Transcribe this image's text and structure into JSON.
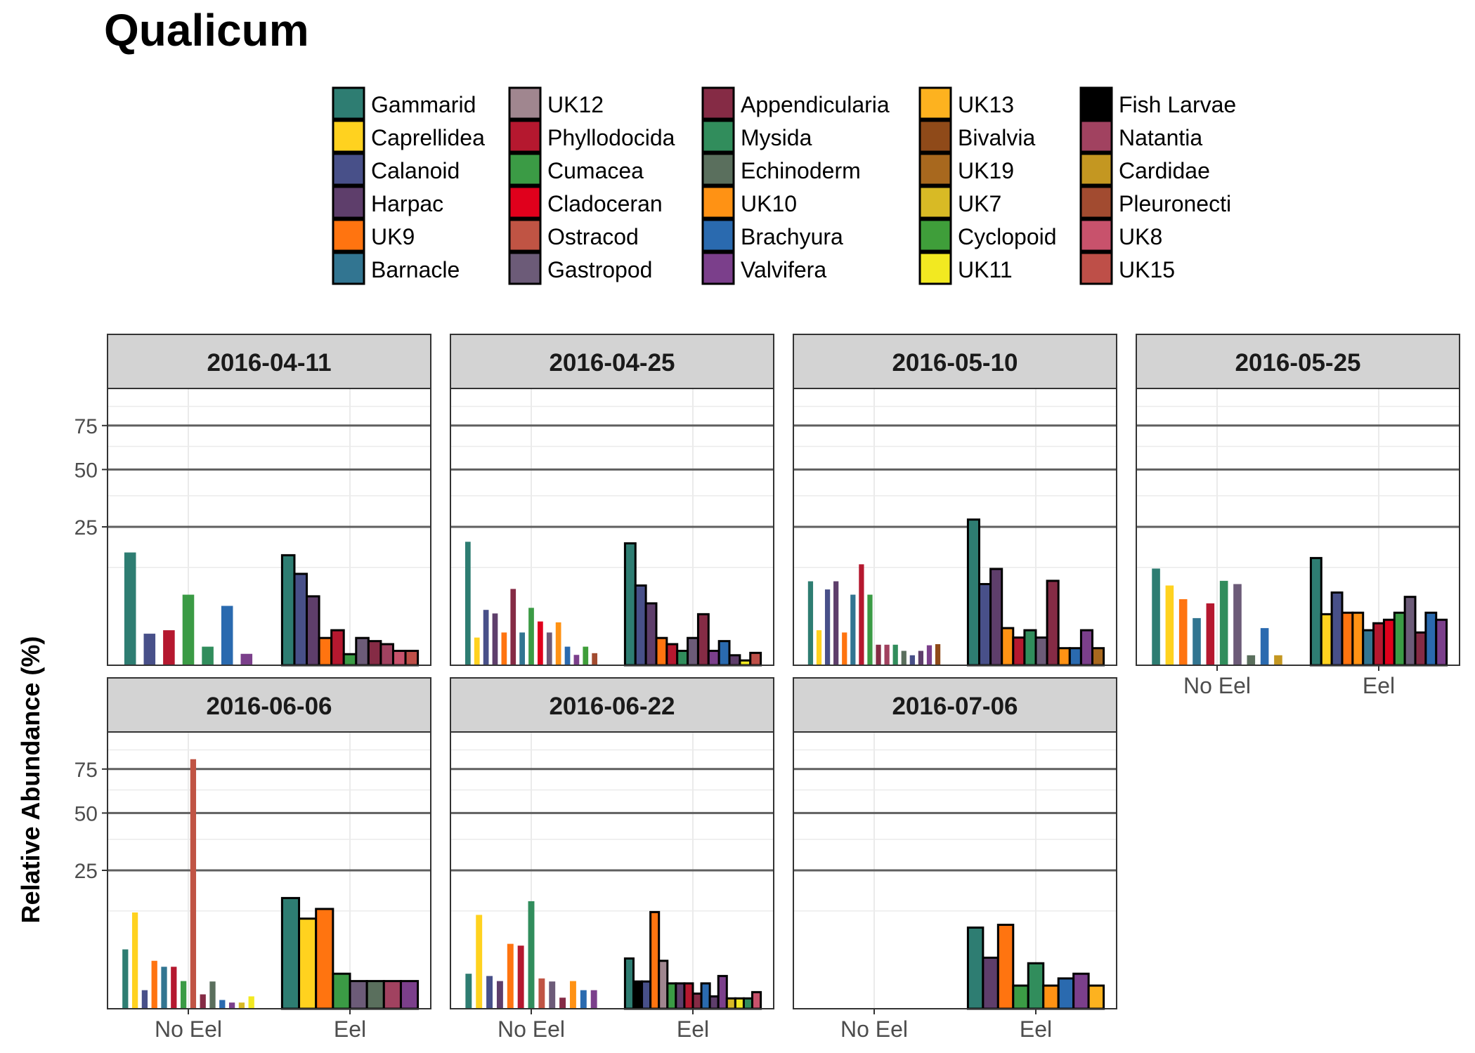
{
  "title": "Qualicum",
  "ylabel": "Relative Abundance (%)",
  "legend": [
    {
      "name": "Gammarid",
      "color": "#2E7D72"
    },
    {
      "name": "Caprellidea",
      "color": "#FFD21F"
    },
    {
      "name": "Calanoid",
      "color": "#485089"
    },
    {
      "name": "Harpac",
      "color": "#5E3E6B"
    },
    {
      "name": "UK9",
      "color": "#FF7410"
    },
    {
      "name": "Barnacle",
      "color": "#327591"
    },
    {
      "name": "UK12",
      "color": "#A0868F"
    },
    {
      "name": "Phyllodocida",
      "color": "#B5182F"
    },
    {
      "name": "Cumacea",
      "color": "#3B9B45"
    },
    {
      "name": "Cladoceran",
      "color": "#E0001C"
    },
    {
      "name": "Ostracod",
      "color": "#C05444"
    },
    {
      "name": "Gastropod",
      "color": "#6C5B78"
    },
    {
      "name": "Appendicularia",
      "color": "#852B45"
    },
    {
      "name": "Mysida",
      "color": "#318D5C"
    },
    {
      "name": "Echinoderm",
      "color": "#5A6F5D"
    },
    {
      "name": "UK10",
      "color": "#FF9214"
    },
    {
      "name": "Brachyura",
      "color": "#2A6AAF"
    },
    {
      "name": "Valvifera",
      "color": "#7B3F8B"
    },
    {
      "name": "UK13",
      "color": "#FDB21F"
    },
    {
      "name": "Bivalvia",
      "color": "#8F4A19"
    },
    {
      "name": "UK19",
      "color": "#A8681E"
    },
    {
      "name": "UK7",
      "color": "#D8BA25"
    },
    {
      "name": "Cyclopoid",
      "color": "#3F9E3A"
    },
    {
      "name": "UK11",
      "color": "#F2E921"
    },
    {
      "name": "Fish Larvae",
      "color": "#000000"
    },
    {
      "name": "Natantia",
      "color": "#A14260"
    },
    {
      "name": "Cardidae",
      "color": "#C49721"
    },
    {
      "name": "Pleuronecti",
      "color": "#A24B30"
    },
    {
      "name": "UK8",
      "color": "#C8526C"
    },
    {
      "name": "UK15",
      "color": "#BE4F48"
    }
  ],
  "axes": {
    "y_ticks": [
      25,
      50,
      75
    ],
    "y_scale": "sqrt",
    "x_categories": [
      "No Eel",
      "Eel"
    ]
  },
  "chart_data": {
    "type": "bar",
    "y_scale": "sqrt",
    "ylim": [
      0,
      100
    ],
    "facets": [
      {
        "date": "2016-04-11",
        "no_eel": [
          [
            "Gammarid",
            16.6
          ],
          [
            "Calanoid",
            1.3
          ],
          [
            "Phyllodocida",
            1.6
          ],
          [
            "Cumacea",
            6.5
          ],
          [
            "Mysida",
            0.45
          ],
          [
            "Brachyura",
            4.6
          ],
          [
            "Valvifera",
            0.17
          ]
        ],
        "eel": [
          [
            "Gammarid",
            15.8
          ],
          [
            "Calanoid",
            10.9
          ],
          [
            "Harpac",
            6.2
          ],
          [
            "UK9",
            0.97
          ],
          [
            "Phyllodocida",
            1.6
          ],
          [
            "Cumacea",
            0.16
          ],
          [
            "Gastropod",
            0.97
          ],
          [
            "Appendicularia",
            0.76
          ],
          [
            "Natantia",
            0.58
          ],
          [
            "UK8",
            0.27
          ],
          [
            "UK15",
            0.27
          ]
        ]
      },
      {
        "date": "2016-04-25",
        "no_eel": [
          [
            "Gammarid",
            19.9
          ],
          [
            "Caprellidea",
            1.0
          ],
          [
            "Calanoid",
            4.0
          ],
          [
            "Harpac",
            3.5
          ],
          [
            "UK9",
            1.4
          ],
          [
            "Appendicularia",
            7.6
          ],
          [
            "Barnacle",
            1.4
          ],
          [
            "Cumacea",
            4.3
          ],
          [
            "Cladoceran",
            2.5
          ],
          [
            "Gastropod",
            1.4
          ],
          [
            "UK10",
            2.4
          ],
          [
            "Brachyura",
            0.45
          ],
          [
            "Valvifera",
            0.14
          ],
          [
            "Cyclopoid",
            0.45
          ],
          [
            "Pleuronecti",
            0.19
          ]
        ],
        "eel": [
          [
            "Gammarid",
            19.4
          ],
          [
            "Calanoid",
            8.3
          ],
          [
            "Harpac",
            5.0
          ],
          [
            "UK9",
            0.97
          ],
          [
            "Phyllodocida",
            0.58
          ],
          [
            "Mysida",
            0.27
          ],
          [
            "Gastropod",
            0.97
          ],
          [
            "Appendicularia",
            3.4
          ],
          [
            "Valvifera",
            0.27
          ],
          [
            "Brachyura",
            0.76
          ],
          [
            "Harpac",
            0.13
          ],
          [
            "UK11",
            0.03
          ],
          [
            "UK15",
            0.2
          ]
        ]
      },
      {
        "date": "2016-05-10",
        "no_eel": [
          [
            "Gammarid",
            9.2
          ],
          [
            "Caprellidea",
            1.6
          ],
          [
            "Calanoid",
            7.5
          ],
          [
            "Harpac",
            9.2
          ],
          [
            "UK9",
            1.4
          ],
          [
            "Barnacle",
            6.5
          ],
          [
            "Phyllodocida",
            13.3
          ],
          [
            "Cumacea",
            6.5
          ],
          [
            "Appendicularia",
            0.55
          ],
          [
            "Natantia",
            0.55
          ],
          [
            "Mysida",
            0.55
          ],
          [
            "Echinoderm",
            0.27
          ],
          [
            "Calanoid",
            0.13
          ],
          [
            "Harpac",
            0.27
          ],
          [
            "Valvifera",
            0.52
          ],
          [
            "Bivalvia",
            0.58
          ]
        ],
        "eel": [
          [
            "Gammarid",
            27.7
          ],
          [
            "Calanoid",
            8.6
          ],
          [
            "Harpac",
            12.1
          ],
          [
            "UK10",
            1.8
          ],
          [
            "Phyllodocida",
            1.0
          ],
          [
            "Mysida",
            1.6
          ],
          [
            "Gastropod",
            1.0
          ],
          [
            "Appendicularia",
            9.3
          ],
          [
            "UK10",
            0.38
          ],
          [
            "Brachyura",
            0.38
          ],
          [
            "Valvifera",
            1.6
          ],
          [
            "UK19",
            0.38
          ]
        ]
      },
      {
        "date": "2016-05-25",
        "no_eel": [
          [
            "Gammarid",
            12.2
          ],
          [
            "Caprellidea",
            8.3
          ],
          [
            "UK9",
            5.7
          ],
          [
            "Barnacle",
            2.9
          ],
          [
            "Phyllodocida",
            5.0
          ],
          [
            "Mysida",
            9.3
          ],
          [
            "Gastropod",
            8.6
          ],
          [
            "Echinoderm",
            0.13
          ],
          [
            "Brachyura",
            1.8
          ],
          [
            "Cardidae",
            0.13
          ]
        ],
        "eel": [
          [
            "Gammarid",
            15.0
          ],
          [
            "Caprellidea",
            3.4
          ],
          [
            "Calanoid",
            6.9
          ],
          [
            "UK9",
            3.6
          ],
          [
            "UK10",
            3.6
          ],
          [
            "Barnacle",
            1.6
          ],
          [
            "Phyllodocida",
            2.3
          ],
          [
            "Cladoceran",
            2.7
          ],
          [
            "Cumacea",
            3.6
          ],
          [
            "Gastropod",
            6.1
          ],
          [
            "Appendicularia",
            1.4
          ],
          [
            "Brachyura",
            3.6
          ],
          [
            "Valvifera",
            2.7
          ]
        ]
      },
      {
        "date": "2016-06-06",
        "no_eel": [
          [
            "Gammarid",
            4.6
          ],
          [
            "Caprellidea",
            12.1
          ],
          [
            "Calanoid",
            0.45
          ],
          [
            "UK9",
            3.0
          ],
          [
            "Barnacle",
            2.3
          ],
          [
            "Phyllodocida",
            2.3
          ],
          [
            "Cumacea",
            1.0
          ],
          [
            "Ostracod",
            81.3
          ],
          [
            "Appendicularia",
            0.27
          ],
          [
            "Echinoderm",
            0.97
          ],
          [
            "Brachyura",
            0.1
          ],
          [
            "Valvifera",
            0.05
          ],
          [
            "UK7",
            0.05
          ],
          [
            "UK11",
            0.2
          ]
        ],
        "eel": [
          [
            "Gammarid",
            16.0
          ],
          [
            "Caprellidea",
            10.6
          ],
          [
            "UK9",
            13.0
          ],
          [
            "Cumacea",
            1.6
          ],
          [
            "Gastropod",
            1.0
          ],
          [
            "Echinoderm",
            1.0
          ],
          [
            "Natantia",
            1.0
          ],
          [
            "Valvifera",
            1.0
          ]
        ]
      },
      {
        "date": "2016-06-22",
        "no_eel": [
          [
            "Gammarid",
            1.6
          ],
          [
            "Caprellidea",
            11.5
          ],
          [
            "Calanoid",
            1.4
          ],
          [
            "Harpac",
            1.0
          ],
          [
            "UK9",
            5.5
          ],
          [
            "Phyllodocida",
            5.2
          ],
          [
            "Mysida",
            15.1
          ],
          [
            "Ostracod",
            1.2
          ],
          [
            "Gastropod",
            0.97
          ],
          [
            "Appendicularia",
            0.16
          ],
          [
            "UK10",
            1.0
          ],
          [
            "Brachyura",
            0.45
          ],
          [
            "Valvifera",
            0.45
          ]
        ],
        "eel": [
          [
            "Gammarid",
            3.3
          ],
          [
            "Fish Larvae",
            0.97
          ],
          [
            "Calanoid",
            0.97
          ],
          [
            "UK9",
            12.2
          ],
          [
            "UK12",
            3.0
          ],
          [
            "Cumacea",
            0.84
          ],
          [
            "Harpac",
            0.84
          ],
          [
            "Phyllodocida",
            0.84
          ],
          [
            "Appendicularia",
            0.3
          ],
          [
            "Brachyura",
            0.84
          ],
          [
            "Harpac",
            0.2
          ],
          [
            "Valvifera",
            1.4
          ],
          [
            "UK7",
            0.14
          ],
          [
            "UK11",
            0.14
          ],
          [
            "Mysida",
            0.14
          ],
          [
            "UK8",
            0.36
          ]
        ]
      },
      {
        "date": "2016-07-06",
        "no_eel": [],
        "eel": [
          [
            "Gammarid",
            8.6
          ],
          [
            "Harpac",
            3.4
          ],
          [
            "UK9",
            9.2
          ],
          [
            "Cumacea",
            0.7
          ],
          [
            "Mysida",
            2.7
          ],
          [
            "UK10",
            0.7
          ],
          [
            "Brachyura",
            1.2
          ],
          [
            "Valvifera",
            1.6
          ],
          [
            "UK13",
            0.7
          ]
        ]
      }
    ]
  }
}
